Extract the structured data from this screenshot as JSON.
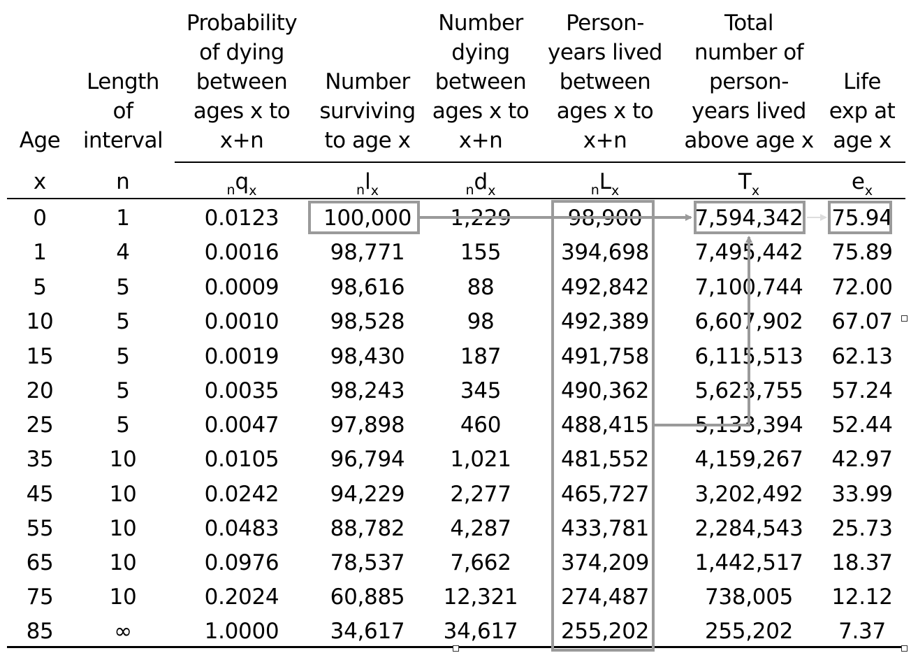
{
  "table": {
    "columns": [
      {
        "key": "age",
        "header": "Age",
        "symbol_prefix": "",
        "symbol_main": "x",
        "symbol_sub": ""
      },
      {
        "key": "length",
        "header": "Length\nof\ninterval",
        "symbol_prefix": "",
        "symbol_main": "n",
        "symbol_sub": ""
      },
      {
        "key": "q",
        "header": "Probability\nof dying\nbetween\nages x to\nx+n",
        "symbol_prefix": "n",
        "symbol_main": "q",
        "symbol_sub": "x"
      },
      {
        "key": "l",
        "header": "Number\nsurviving\nto age x",
        "symbol_prefix": "n",
        "symbol_main": "l",
        "symbol_sub": "x"
      },
      {
        "key": "d",
        "header": "Number\ndying\nbetween\nages x to\nx+n",
        "symbol_prefix": "n",
        "symbol_main": "d",
        "symbol_sub": "x"
      },
      {
        "key": "L",
        "header": "Person-\nyears lived\nbetween\nages x to\nx+n",
        "symbol_prefix": "n",
        "symbol_main": "L",
        "symbol_sub": "x"
      },
      {
        "key": "T",
        "header": "Total\nnumber  of\nperson-\nyears lived\nabove age x",
        "symbol_prefix": "",
        "symbol_main": "T",
        "symbol_sub": "x"
      },
      {
        "key": "e",
        "header": "Life\nexp at\nage x",
        "symbol_prefix": "",
        "symbol_main": "e",
        "symbol_sub": "x"
      }
    ],
    "rows": [
      [
        "0",
        "1",
        "0.0123",
        "100,000",
        "1,229",
        "98,900",
        "7,594,342",
        "75.94"
      ],
      [
        "1",
        "4",
        "0.0016",
        "98,771",
        "155",
        "394,698",
        "7,495,442",
        "75.89"
      ],
      [
        "5",
        "5",
        "0.0009",
        "98,616",
        "88",
        "492,842",
        "7,100,744",
        "72.00"
      ],
      [
        "10",
        "5",
        "0.0010",
        "98,528",
        "98",
        "492,389",
        "6,607,902",
        "67.07"
      ],
      [
        "15",
        "5",
        "0.0019",
        "98,430",
        "187",
        "491,758",
        "6,115,513",
        "62.13"
      ],
      [
        "20",
        "5",
        "0.0035",
        "98,243",
        "345",
        "490,362",
        "5,623,755",
        "57.24"
      ],
      [
        "25",
        "5",
        "0.0047",
        "97,898",
        "460",
        "488,415",
        "5,133,394",
        "52.44"
      ],
      [
        "35",
        "10",
        "0.0105",
        "96,794",
        "1,021",
        "481,552",
        "4,159,267",
        "42.97"
      ],
      [
        "45",
        "10",
        "0.0242",
        "94,229",
        "2,277",
        "465,727",
        "3,202,492",
        "33.99"
      ],
      [
        "55",
        "10",
        "0.0483",
        "88,782",
        "4,287",
        "433,781",
        "2,284,543",
        "25.73"
      ],
      [
        "65",
        "10",
        "0.0976",
        "78,537",
        "7,662",
        "374,209",
        "1,442,517",
        "18.37"
      ],
      [
        "75",
        "10",
        "0.2024",
        "60,885",
        "12,321",
        "274,487",
        "738,005",
        "12.12"
      ],
      [
        "85",
        "∞",
        "1.0000",
        "34,617",
        "34,617",
        "255,202",
        "255,202",
        "7.37"
      ]
    ]
  },
  "colors": {
    "text": "#000000",
    "highlight": "#9a9a9a",
    "background": "#ffffff"
  },
  "icons": {
    "arrow": "arrow-right-icon",
    "handle": "selection-handle-icon"
  }
}
